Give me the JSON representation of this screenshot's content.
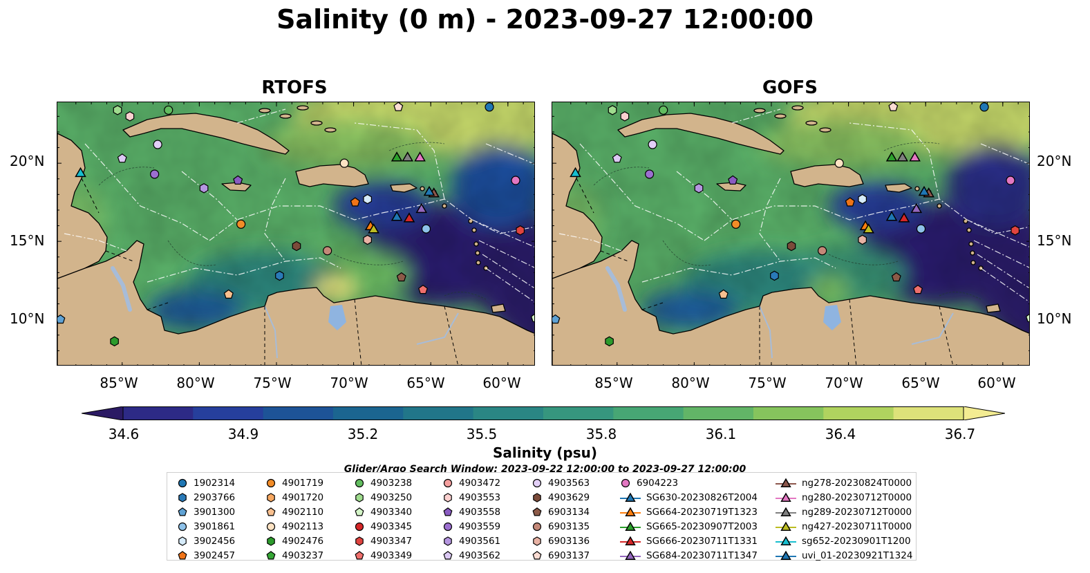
{
  "title": "Salinity (0 m) - 2023-09-27 12:00:00",
  "panels": [
    {
      "name": "RTOFS"
    },
    {
      "name": "GOFS"
    }
  ],
  "axes": {
    "lat_ticks": [
      "20°N",
      "15°N",
      "10°N"
    ],
    "lon_ticks": [
      "85°W",
      "80°W",
      "75°W",
      "70°W",
      "65°W",
      "60°W"
    ]
  },
  "colorbar": {
    "label": "Salinity (psu)",
    "ticks": [
      "34.6",
      "34.9",
      "35.2",
      "35.5",
      "35.8",
      "36.1",
      "36.4",
      "36.7"
    ],
    "range": [
      34.6,
      36.7
    ],
    "colors": [
      "#2b1a64",
      "#2d2a86",
      "#263f9c",
      "#1d5397",
      "#1b6590",
      "#217689",
      "#2a8684",
      "#36967e",
      "#47a674",
      "#62b567",
      "#86c45d",
      "#b0d35f",
      "#dde27a",
      "#f3ec92"
    ]
  },
  "search_window": "Glider/Argo Search Window: 2023-09-22 12:00:00 to 2023-09-27 12:00:00",
  "legend": {
    "col1": [
      {
        "label": "1902314",
        "marker": "circle",
        "color": "#1f77b4"
      },
      {
        "label": "2903766",
        "marker": "hexagon",
        "color": "#2a7ab8"
      },
      {
        "label": "3901300",
        "marker": "pentagon",
        "color": "#5fa2d4"
      },
      {
        "label": "3901861",
        "marker": "circle",
        "color": "#8ec2ea"
      },
      {
        "label": "3902456",
        "marker": "hexagon",
        "color": "#d6ebfa"
      },
      {
        "label": "3902457",
        "marker": "pentagon",
        "color": "#f07418"
      }
    ],
    "col2": [
      {
        "label": "4901719",
        "marker": "circle",
        "color": "#f28c28"
      },
      {
        "label": "4901720",
        "marker": "hexagon",
        "color": "#f7a861"
      },
      {
        "label": "4902110",
        "marker": "pentagon",
        "color": "#f9c08f"
      },
      {
        "label": "4902113",
        "marker": "circle",
        "color": "#fde3c4"
      },
      {
        "label": "4902476",
        "marker": "hexagon",
        "color": "#2c9b2c"
      },
      {
        "label": "4903237",
        "marker": "pentagon",
        "color": "#36a736"
      }
    ],
    "col3": [
      {
        "label": "4903238",
        "marker": "circle",
        "color": "#62bd5f"
      },
      {
        "label": "4903250",
        "marker": "hexagon",
        "color": "#9fdc8e"
      },
      {
        "label": "4903340",
        "marker": "pentagon",
        "color": "#d4f5c8"
      },
      {
        "label": "4903345",
        "marker": "circle",
        "color": "#d62728"
      },
      {
        "label": "4903347",
        "marker": "hexagon",
        "color": "#e0443f"
      },
      {
        "label": "4903349",
        "marker": "pentagon",
        "color": "#ef6f6c"
      }
    ],
    "col4": [
      {
        "label": "4903472",
        "marker": "circle",
        "color": "#f49f9e"
      },
      {
        "label": "4903553",
        "marker": "hexagon",
        "color": "#fbd0cf"
      },
      {
        "label": "4903558",
        "marker": "pentagon",
        "color": "#8a5cc2"
      },
      {
        "label": "4903559",
        "marker": "circle",
        "color": "#9c6fd0"
      },
      {
        "label": "4903561",
        "marker": "hexagon",
        "color": "#b596e0"
      },
      {
        "label": "4903562",
        "marker": "pentagon",
        "color": "#dcc9f4"
      }
    ],
    "col5": [
      {
        "label": "4903563",
        "marker": "circle",
        "color": "#e2cff7"
      },
      {
        "label": "4903629",
        "marker": "hexagon",
        "color": "#7b4b3a"
      },
      {
        "label": "6903134",
        "marker": "pentagon",
        "color": "#8c5a48"
      },
      {
        "label": "6903135",
        "marker": "circle",
        "color": "#c48878"
      },
      {
        "label": "6903136",
        "marker": "hexagon",
        "color": "#e8b2a4"
      },
      {
        "label": "6903137",
        "marker": "pentagon",
        "color": "#fbdcd3"
      }
    ],
    "col6": [
      {
        "label": "6904223",
        "marker": "circle",
        "color": "#e377c2"
      },
      {
        "label": "SG630-20230826T2004",
        "marker": "triangle",
        "color": "#1f77b4"
      },
      {
        "label": "SG664-20230719T1323",
        "marker": "triangle",
        "color": "#ff7f0e"
      },
      {
        "label": "SG665-20230907T2003",
        "marker": "triangle",
        "color": "#2ca02c"
      },
      {
        "label": "SG666-20230711T1331",
        "marker": "triangle",
        "color": "#d62728"
      },
      {
        "label": "SG684-20230711T1347",
        "marker": "triangle",
        "color": "#9467bd"
      }
    ],
    "col7": [
      {
        "label": "ng278-20230824T0000",
        "marker": "triangle",
        "color": "#8c564b"
      },
      {
        "label": "ng280-20230712T0000",
        "marker": "triangle",
        "color": "#e377c2"
      },
      {
        "label": "ng289-20230712T0000",
        "marker": "triangle",
        "color": "#7f7f7f"
      },
      {
        "label": "ng427-20230711T0000",
        "marker": "triangle",
        "color": "#bcbd22"
      },
      {
        "label": "sg652-20230901T1200",
        "marker": "triangle",
        "color": "#17becf"
      },
      {
        "label": "uvi_01-20230921T1324",
        "marker": "triangle",
        "color": "#1f77b4"
      }
    ]
  },
  "observations": [
    {
      "id": "1902314",
      "lon": -61.2,
      "lat": 23.6
    },
    {
      "id": "6903137",
      "lon": -67.1,
      "lat": 23.6
    },
    {
      "id": "4903238",
      "lon": -82.0,
      "lat": 23.4
    },
    {
      "id": "4903250",
      "lon": -85.3,
      "lat": 23.4
    },
    {
      "id": "4903553",
      "lon": -84.5,
      "lat": 23.0
    },
    {
      "id": "4903563",
      "lon": -82.7,
      "lat": 21.2
    },
    {
      "id": "4903562",
      "lon": -85.0,
      "lat": 20.3
    },
    {
      "id": "4903559",
      "lon": -82.9,
      "lat": 19.3
    },
    {
      "id": "4903558",
      "lon": -77.5,
      "lat": 18.9
    },
    {
      "id": "4903561",
      "lon": -79.7,
      "lat": 18.4
    },
    {
      "id": "4902113",
      "lon": -70.6,
      "lat": 20.0
    },
    {
      "id": "6904223",
      "lon": -59.5,
      "lat": 18.9
    },
    {
      "id": "3902457",
      "lon": -69.9,
      "lat": 17.5
    },
    {
      "id": "3902456",
      "lon": -69.1,
      "lat": 17.7
    },
    {
      "id": "4901719",
      "lon": -77.3,
      "lat": 16.1
    },
    {
      "id": "3901861",
      "lon": -65.3,
      "lat": 15.8
    },
    {
      "id": "4903347",
      "lon": -59.2,
      "lat": 15.7
    },
    {
      "id": "6903136",
      "lon": -69.1,
      "lat": 15.1
    },
    {
      "id": "4903629",
      "lon": -73.7,
      "lat": 14.7
    },
    {
      "id": "6903135",
      "lon": -71.7,
      "lat": 14.4
    },
    {
      "id": "2903766",
      "lon": -74.8,
      "lat": 12.8
    },
    {
      "id": "6903134",
      "lon": -66.9,
      "lat": 12.7
    },
    {
      "id": "4902110",
      "lon": -78.1,
      "lat": 11.6
    },
    {
      "id": "4903349",
      "lon": -65.5,
      "lat": 11.9
    },
    {
      "id": "3901300",
      "lon": -89.0,
      "lat": 10.0
    },
    {
      "id": "4903340",
      "lon": -58.2,
      "lat": 10.1
    },
    {
      "id": "4902476",
      "lon": -85.5,
      "lat": 8.6
    },
    {
      "id": "SG665-20230907T2003",
      "lon": -67.2,
      "lat": 20.4
    },
    {
      "id": "ng289-20230712T0000",
      "lon": -66.5,
      "lat": 20.4
    },
    {
      "id": "ng280-20230712T0000",
      "lon": -65.7,
      "lat": 20.4
    },
    {
      "id": "sg652-20230901T1200",
      "lon": -87.7,
      "lat": 19.4
    },
    {
      "id": "ng278-20230824T0000",
      "lon": -64.8,
      "lat": 18.1
    },
    {
      "id": "uvi_01-20230921T1324",
      "lon": -65.1,
      "lat": 18.2
    },
    {
      "id": "SG684-20230711T1347",
      "lon": -65.6,
      "lat": 17.1
    },
    {
      "id": "SG630-20230826T2004",
      "lon": -67.2,
      "lat": 16.6
    },
    {
      "id": "SG666-20230711T1331",
      "lon": -66.4,
      "lat": 16.5
    },
    {
      "id": "SG664-20230719T1323",
      "lon": -68.9,
      "lat": 16.0
    },
    {
      "id": "ng427-20230711T0000",
      "lon": -68.7,
      "lat": 15.8
    }
  ]
}
